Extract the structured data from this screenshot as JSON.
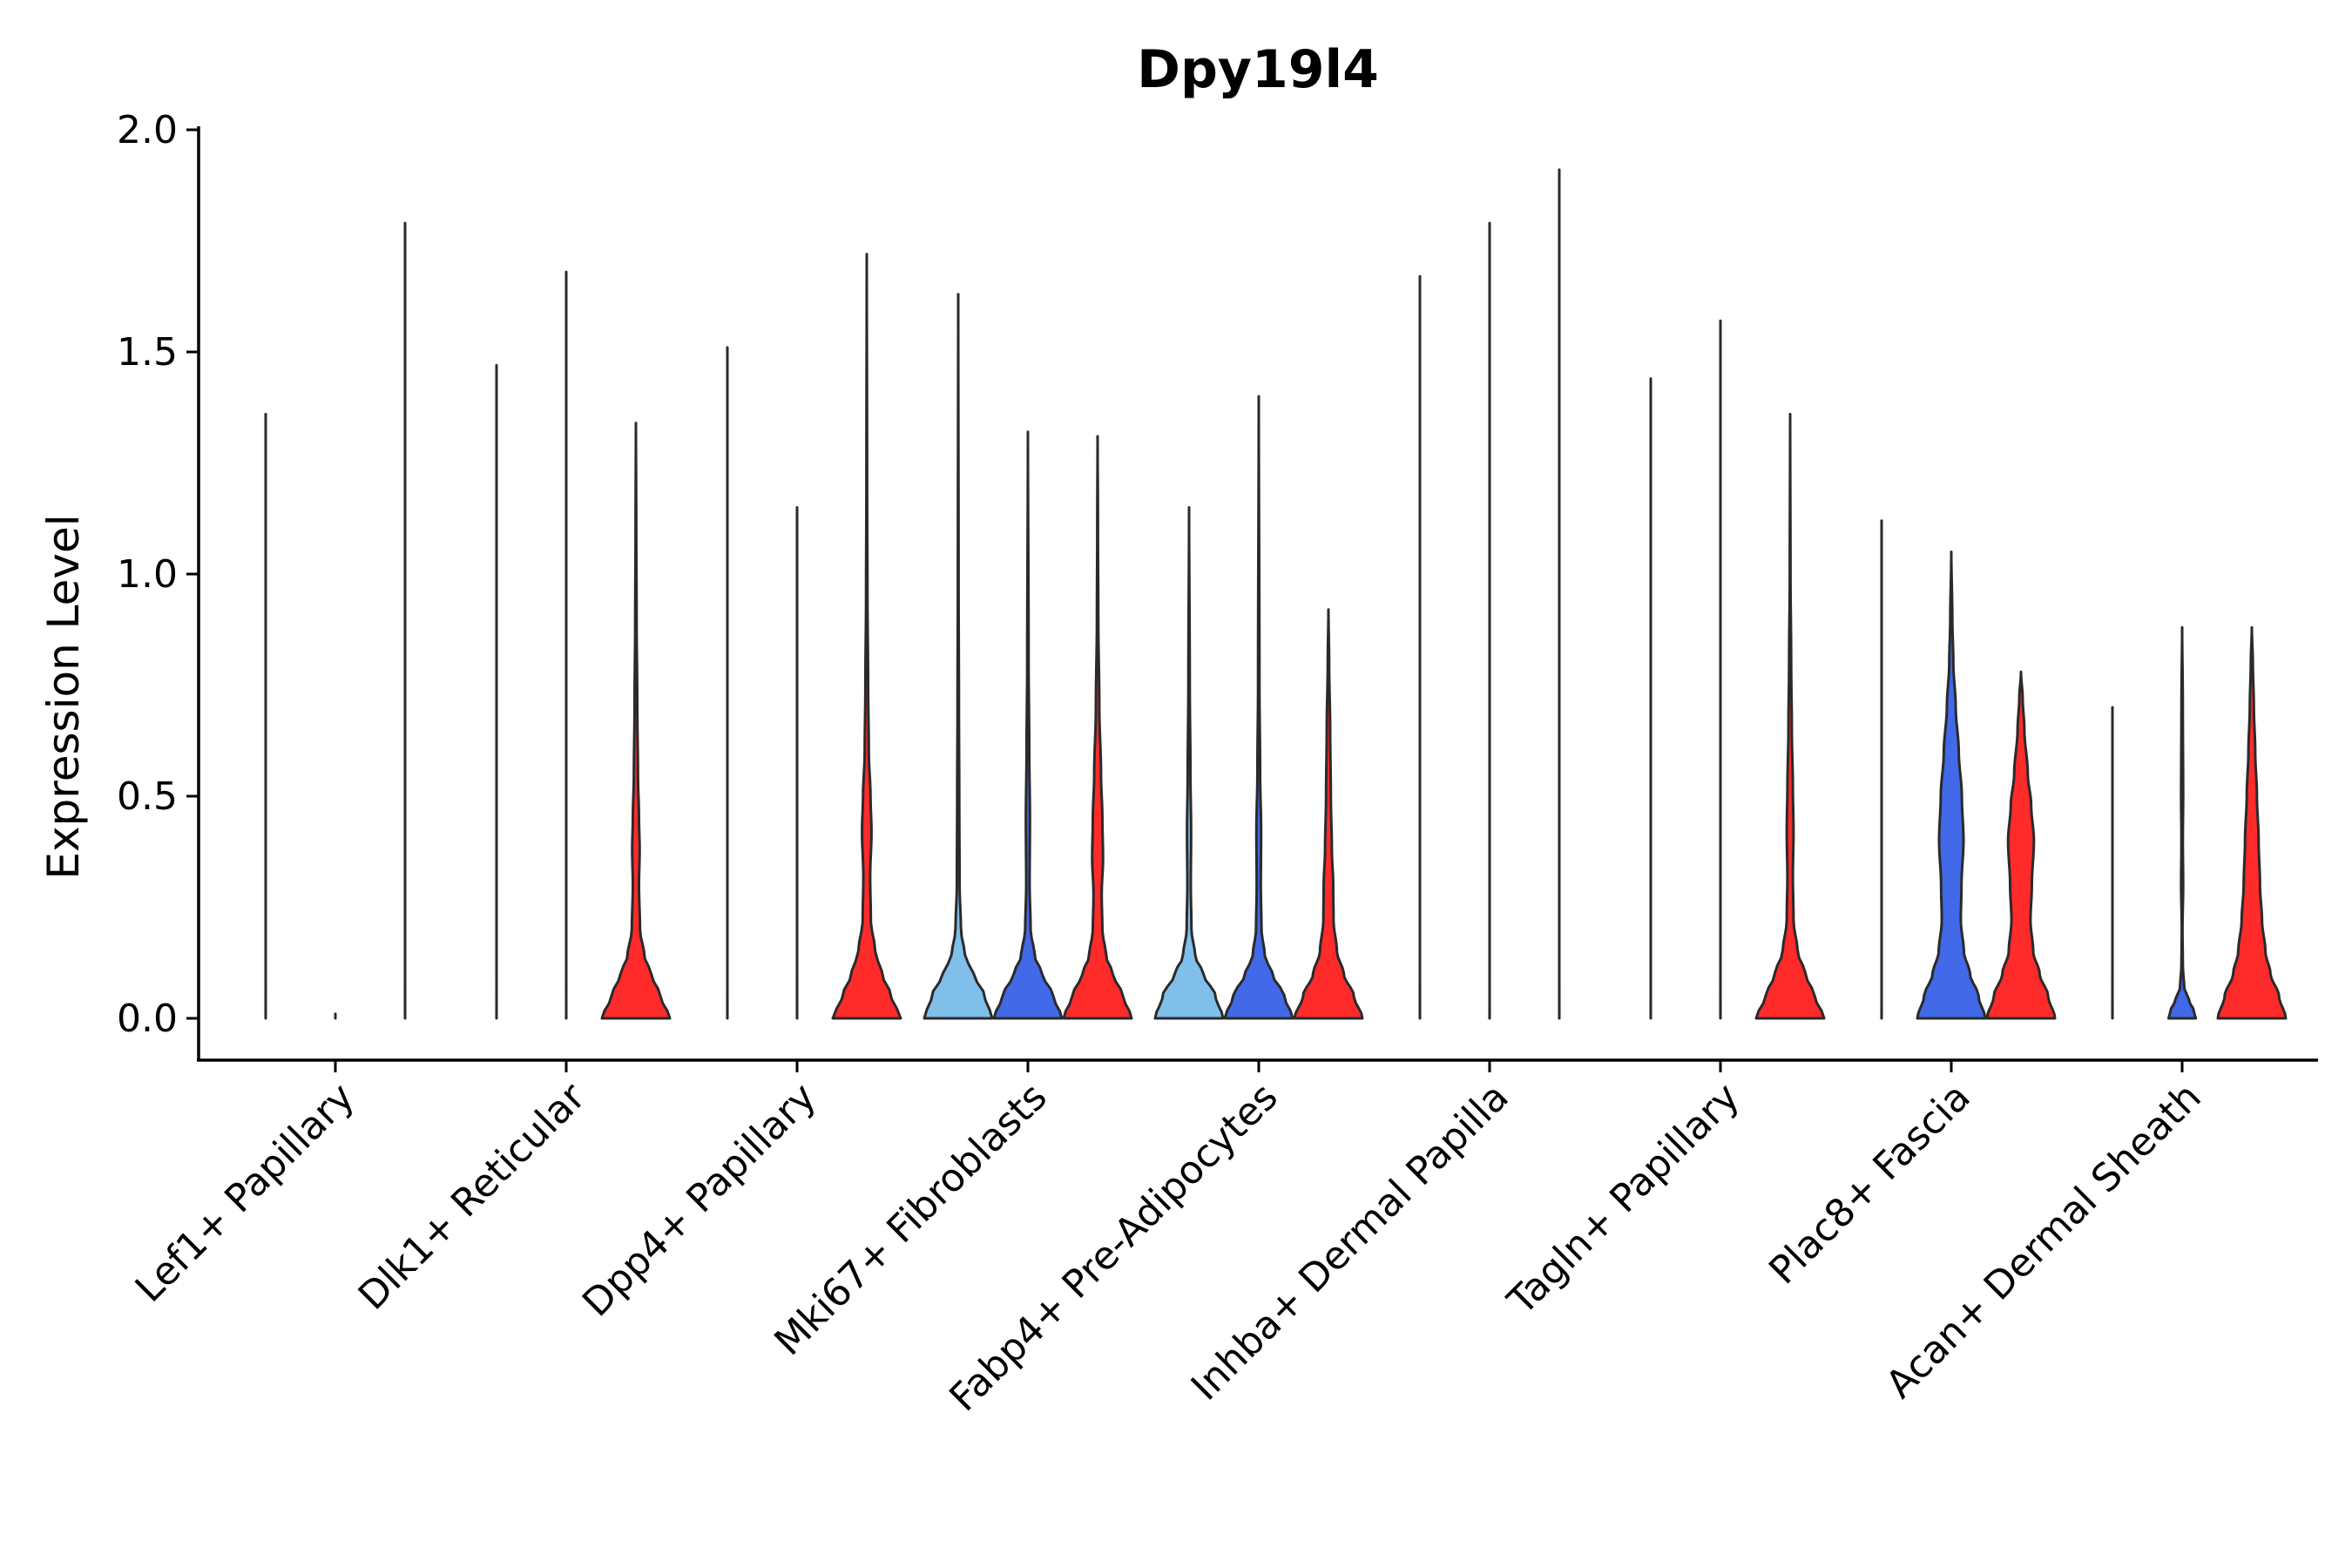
{
  "chart_data": {
    "type": "violin",
    "title": "Dpy19l4",
    "xlabel": "",
    "ylabel": "Expression Level",
    "ylim": [
      -0.1,
      2.0
    ],
    "yticks": [
      0.0,
      0.5,
      1.0,
      1.5,
      2.0
    ],
    "ytick_labels": [
      "0.0",
      "0.5",
      "1.0",
      "1.5",
      "2.0"
    ],
    "grid": false,
    "legend": "none",
    "colors": {
      "light_blue": "#7fbfea",
      "blue": "#4169e8",
      "red": "#ff2a2a",
      "outline": "#2a2a2a"
    },
    "groups_per_category": 3,
    "categories": [
      {
        "label": "Lef1+ Papillary",
        "violins": [
          {
            "color": "light_blue",
            "max": 1.36,
            "profile": [
              [
                0,
                0.0008
              ],
              [
                0.03,
                0.0004
              ],
              [
                0.1,
                0.0001
              ],
              [
                1.36,
                0.0
              ]
            ]
          },
          {
            "color": "blue",
            "max": 0.0,
            "profile": [
              [
                0,
                0.0004
              ],
              [
                0.01,
                0.0
              ]
            ]
          },
          {
            "color": "red",
            "max": 1.79,
            "profile": [
              [
                0,
                0.0008
              ],
              [
                0.03,
                0.0004
              ],
              [
                0.1,
                0.0001
              ],
              [
                1.79,
                0.0
              ]
            ]
          }
        ]
      },
      {
        "label": "Dlk1+ Reticular",
        "violins": [
          {
            "color": "light_blue",
            "max": 1.47,
            "profile": [
              [
                0,
                0.0008
              ],
              [
                0.03,
                0.0004
              ],
              [
                0.1,
                0.0001
              ],
              [
                1.47,
                0.0
              ]
            ]
          },
          {
            "color": "blue",
            "max": 1.68,
            "profile": [
              [
                0,
                0.0008
              ],
              [
                0.03,
                0.0004
              ],
              [
                0.1,
                0.0001
              ],
              [
                1.68,
                0.0
              ]
            ]
          },
          {
            "color": "red",
            "max": 1.34,
            "profile": [
              [
                0,
                1.0
              ],
              [
                0.05,
                0.72
              ],
              [
                0.1,
                0.45
              ],
              [
                0.14,
                0.25
              ],
              [
                0.2,
                0.12
              ],
              [
                0.3,
                0.09
              ],
              [
                0.38,
                0.11
              ],
              [
                0.45,
                0.09
              ],
              [
                0.55,
                0.06
              ],
              [
                0.7,
                0.04
              ],
              [
                0.9,
                0.02
              ],
              [
                1.1,
                0.01
              ],
              [
                1.34,
                0.0
              ]
            ]
          }
        ]
      },
      {
        "label": "Dpp4+ Papillary",
        "violins": [
          {
            "color": "light_blue",
            "max": 1.51,
            "profile": [
              [
                0,
                0.0008
              ],
              [
                0.03,
                0.0004
              ],
              [
                0.1,
                0.0001
              ],
              [
                1.51,
                0.0
              ]
            ]
          },
          {
            "color": "blue",
            "max": 1.15,
            "profile": [
              [
                0,
                0.0008
              ],
              [
                0.03,
                0.0004
              ],
              [
                0.1,
                0.0001
              ],
              [
                1.15,
                0.0
              ]
            ]
          },
          {
            "color": "red",
            "max": 1.72,
            "profile": [
              [
                0,
                1.0
              ],
              [
                0.05,
                0.72
              ],
              [
                0.1,
                0.45
              ],
              [
                0.15,
                0.25
              ],
              [
                0.22,
                0.12
              ],
              [
                0.32,
                0.1
              ],
              [
                0.42,
                0.14
              ],
              [
                0.5,
                0.11
              ],
              [
                0.6,
                0.06
              ],
              [
                0.75,
                0.04
              ],
              [
                0.95,
                0.02
              ],
              [
                1.2,
                0.01
              ],
              [
                1.72,
                0.0
              ]
            ]
          }
        ]
      },
      {
        "label": "Mki67+ Fibroblasts",
        "violins": [
          {
            "color": "light_blue",
            "max": 1.63,
            "profile": [
              [
                0,
                1.0
              ],
              [
                0.05,
                0.78
              ],
              [
                0.1,
                0.45
              ],
              [
                0.14,
                0.2
              ],
              [
                0.2,
                0.08
              ],
              [
                0.3,
                0.04
              ],
              [
                0.5,
                0.03
              ],
              [
                0.7,
                0.02
              ],
              [
                1.0,
                0.01
              ],
              [
                1.63,
                0.0
              ]
            ]
          },
          {
            "color": "blue",
            "max": 1.32,
            "profile": [
              [
                0,
                1.0
              ],
              [
                0.05,
                0.75
              ],
              [
                0.1,
                0.42
              ],
              [
                0.14,
                0.2
              ],
              [
                0.2,
                0.08
              ],
              [
                0.3,
                0.05
              ],
              [
                0.45,
                0.06
              ],
              [
                0.6,
                0.04
              ],
              [
                0.8,
                0.02
              ],
              [
                1.32,
                0.0
              ]
            ]
          },
          {
            "color": "red",
            "max": 1.31,
            "profile": [
              [
                0,
                1.0
              ],
              [
                0.05,
                0.75
              ],
              [
                0.1,
                0.45
              ],
              [
                0.14,
                0.25
              ],
              [
                0.2,
                0.14
              ],
              [
                0.28,
                0.12
              ],
              [
                0.36,
                0.16
              ],
              [
                0.45,
                0.14
              ],
              [
                0.55,
                0.1
              ],
              [
                0.7,
                0.05
              ],
              [
                0.9,
                0.02
              ],
              [
                1.1,
                0.01
              ],
              [
                1.31,
                0.0
              ]
            ]
          }
        ]
      },
      {
        "label": "Fabp4+ Pre-Adipocytes",
        "violins": [
          {
            "color": "light_blue",
            "max": 1.15,
            "profile": [
              [
                0,
                1.0
              ],
              [
                0.05,
                0.78
              ],
              [
                0.1,
                0.42
              ],
              [
                0.14,
                0.18
              ],
              [
                0.2,
                0.07
              ],
              [
                0.3,
                0.05
              ],
              [
                0.42,
                0.06
              ],
              [
                0.55,
                0.04
              ],
              [
                0.75,
                0.02
              ],
              [
                1.15,
                0.0
              ]
            ]
          },
          {
            "color": "blue",
            "max": 1.4,
            "profile": [
              [
                0,
                1.0
              ],
              [
                0.05,
                0.75
              ],
              [
                0.1,
                0.4
              ],
              [
                0.14,
                0.18
              ],
              [
                0.2,
                0.08
              ],
              [
                0.3,
                0.06
              ],
              [
                0.42,
                0.07
              ],
              [
                0.55,
                0.04
              ],
              [
                0.75,
                0.02
              ],
              [
                1.4,
                0.0
              ]
            ]
          },
          {
            "color": "red",
            "max": 0.92,
            "profile": [
              [
                0,
                1.0
              ],
              [
                0.05,
                0.75
              ],
              [
                0.1,
                0.45
              ],
              [
                0.15,
                0.25
              ],
              [
                0.22,
                0.15
              ],
              [
                0.3,
                0.14
              ],
              [
                0.38,
                0.1
              ],
              [
                0.5,
                0.07
              ],
              [
                0.65,
                0.05
              ],
              [
                0.8,
                0.02
              ],
              [
                0.92,
                0.0
              ]
            ]
          }
        ]
      },
      {
        "label": "Inhba+ Dermal Papilla",
        "violins": [
          {
            "color": "light_blue",
            "max": 1.67,
            "profile": [
              [
                0,
                0.0008
              ],
              [
                0.03,
                0.0004
              ],
              [
                0.1,
                0.0001
              ],
              [
                1.67,
                0.0
              ]
            ]
          },
          {
            "color": "blue",
            "max": 1.79,
            "profile": [
              [
                0,
                0.0008
              ],
              [
                0.03,
                0.0004
              ],
              [
                0.1,
                0.0001
              ],
              [
                1.79,
                0.0
              ]
            ]
          },
          {
            "color": "red",
            "max": 1.91,
            "profile": [
              [
                0,
                0.0008
              ],
              [
                0.03,
                0.0004
              ],
              [
                0.1,
                0.0001
              ],
              [
                1.91,
                0.0
              ]
            ]
          }
        ]
      },
      {
        "label": "Tagln+ Papillary",
        "violins": [
          {
            "color": "light_blue",
            "max": 1.44,
            "profile": [
              [
                0,
                0.0008
              ],
              [
                0.03,
                0.0004
              ],
              [
                0.1,
                0.0001
              ],
              [
                1.44,
                0.0
              ]
            ]
          },
          {
            "color": "blue",
            "max": 1.57,
            "profile": [
              [
                0,
                0.0008
              ],
              [
                0.03,
                0.0004
              ],
              [
                0.1,
                0.0001
              ],
              [
                1.57,
                0.0
              ]
            ]
          },
          {
            "color": "red",
            "max": 1.36,
            "profile": [
              [
                0,
                1.0
              ],
              [
                0.05,
                0.72
              ],
              [
                0.1,
                0.45
              ],
              [
                0.15,
                0.22
              ],
              [
                0.22,
                0.1
              ],
              [
                0.32,
                0.08
              ],
              [
                0.42,
                0.1
              ],
              [
                0.52,
                0.08
              ],
              [
                0.65,
                0.05
              ],
              [
                0.8,
                0.03
              ],
              [
                1.0,
                0.01
              ],
              [
                1.36,
                0.0
              ]
            ]
          }
        ]
      },
      {
        "label": "Plac8+ Fascia",
        "violins": [
          {
            "color": "light_blue",
            "max": 1.12,
            "profile": [
              [
                0,
                0.0008
              ],
              [
                0.03,
                0.0004
              ],
              [
                0.1,
                0.0001
              ],
              [
                1.12,
                0.0
              ]
            ]
          },
          {
            "color": "blue",
            "max": 1.05,
            "profile": [
              [
                0,
                1.0
              ],
              [
                0.05,
                0.8
              ],
              [
                0.1,
                0.55
              ],
              [
                0.15,
                0.37
              ],
              [
                0.22,
                0.28
              ],
              [
                0.3,
                0.3
              ],
              [
                0.4,
                0.36
              ],
              [
                0.5,
                0.31
              ],
              [
                0.6,
                0.22
              ],
              [
                0.7,
                0.13
              ],
              [
                0.8,
                0.06
              ],
              [
                0.9,
                0.03
              ],
              [
                1.05,
                0.0
              ]
            ]
          },
          {
            "color": "red",
            "max": 0.78,
            "profile": [
              [
                0,
                1.0
              ],
              [
                0.05,
                0.8
              ],
              [
                0.1,
                0.55
              ],
              [
                0.15,
                0.36
              ],
              [
                0.22,
                0.28
              ],
              [
                0.3,
                0.32
              ],
              [
                0.4,
                0.38
              ],
              [
                0.48,
                0.3
              ],
              [
                0.55,
                0.2
              ],
              [
                0.65,
                0.1
              ],
              [
                0.72,
                0.05
              ],
              [
                0.78,
                0.0
              ]
            ]
          }
        ]
      },
      {
        "label": "Acan+ Dermal Sheath",
        "violins": [
          {
            "color": "light_blue",
            "max": 0.7,
            "profile": [
              [
                0,
                0.0008
              ],
              [
                0.03,
                0.0004
              ],
              [
                0.1,
                0.0001
              ],
              [
                0.7,
                0.0
              ]
            ]
          },
          {
            "color": "blue",
            "max": 0.88,
            "profile": [
              [
                0,
                0.4
              ],
              [
                0.02,
                0.33
              ],
              [
                0.04,
                0.2
              ],
              [
                0.07,
                0.06
              ],
              [
                0.12,
                0.02
              ],
              [
                0.2,
                0.01
              ],
              [
                0.3,
                0.03
              ],
              [
                0.4,
                0.02
              ],
              [
                0.5,
                0.03
              ],
              [
                0.7,
                0.02
              ],
              [
                0.88,
                0.0
              ]
            ]
          },
          {
            "color": "red",
            "max": 0.88,
            "profile": [
              [
                0,
                1.0
              ],
              [
                0.05,
                0.8
              ],
              [
                0.1,
                0.55
              ],
              [
                0.15,
                0.4
              ],
              [
                0.22,
                0.3
              ],
              [
                0.3,
                0.24
              ],
              [
                0.4,
                0.2
              ],
              [
                0.5,
                0.15
              ],
              [
                0.6,
                0.1
              ],
              [
                0.7,
                0.06
              ],
              [
                0.8,
                0.03
              ],
              [
                0.88,
                0.0
              ]
            ]
          }
        ]
      }
    ]
  }
}
